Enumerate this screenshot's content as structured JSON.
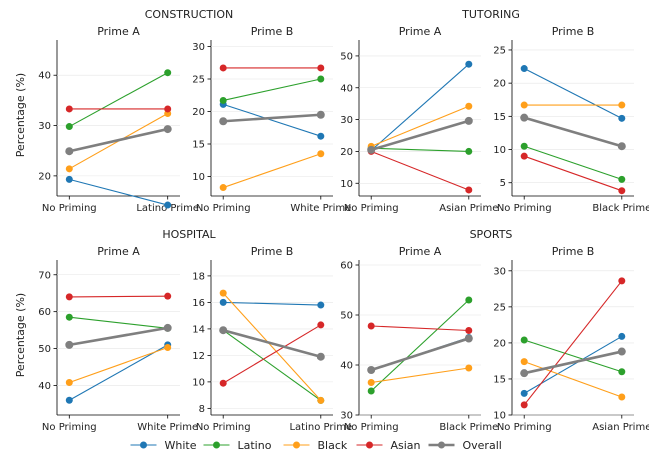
{
  "layout": {
    "ylabel": "Percentage (%)",
    "groups": [
      "CONSTRUCTION",
      "TUTORING",
      "HOSPITAL",
      "SPORTS"
    ]
  },
  "legend": {
    "position": "bottom-center",
    "entries": [
      {
        "name": "White",
        "color": "#1f77b4"
      },
      {
        "name": "Latino",
        "color": "#2ca02c"
      },
      {
        "name": "Black",
        "color": "#ff9f1a"
      },
      {
        "name": "Asian",
        "color": "#d62728"
      },
      {
        "name": "Overall",
        "color": "#7f7f7f"
      }
    ]
  },
  "chart_data": [
    {
      "type": "line",
      "group": "CONSTRUCTION",
      "title": "Prime A",
      "categories": [
        "No Priming",
        "Latino Prime"
      ],
      "ylim": [
        16,
        47
      ],
      "yticks": [
        20,
        30,
        40
      ],
      "series": [
        {
          "name": "White",
          "values": [
            19.3,
            14.2
          ]
        },
        {
          "name": "Latino",
          "values": [
            29.8,
            40.5
          ]
        },
        {
          "name": "Black",
          "values": [
            21.4,
            32.4
          ]
        },
        {
          "name": "Asian",
          "values": [
            33.3,
            33.3
          ]
        },
        {
          "name": "Overall",
          "values": [
            24.9,
            29.3
          ]
        }
      ]
    },
    {
      "type": "line",
      "group": "CONSTRUCTION",
      "title": "Prime B",
      "categories": [
        "No Priming",
        "White Prime"
      ],
      "ylim": [
        7,
        31
      ],
      "yticks": [
        10,
        15,
        20,
        25,
        30
      ],
      "series": [
        {
          "name": "White",
          "values": [
            21.1,
            16.2
          ]
        },
        {
          "name": "Latino",
          "values": [
            21.7,
            25.0
          ]
        },
        {
          "name": "Black",
          "values": [
            8.3,
            13.5
          ]
        },
        {
          "name": "Asian",
          "values": [
            26.7,
            26.7
          ]
        },
        {
          "name": "Overall",
          "values": [
            18.5,
            19.5
          ]
        }
      ]
    },
    {
      "type": "line",
      "group": "TUTORING",
      "title": "Prime A",
      "categories": [
        "No Priming",
        "Asian Prime"
      ],
      "ylim": [
        6,
        55
      ],
      "yticks": [
        10,
        20,
        30,
        40,
        50
      ],
      "series": [
        {
          "name": "White",
          "values": [
            20.3,
            47.4
          ]
        },
        {
          "name": "Latino",
          "values": [
            21.0,
            20.0
          ]
        },
        {
          "name": "Black",
          "values": [
            21.6,
            34.2
          ]
        },
        {
          "name": "Asian",
          "values": [
            20.0,
            7.9
          ]
        },
        {
          "name": "Overall",
          "values": [
            20.5,
            29.6
          ]
        }
      ]
    },
    {
      "type": "line",
      "group": "TUTORING",
      "title": "Prime B",
      "categories": [
        "No Priming",
        "Black Prime"
      ],
      "ylim": [
        3,
        26.5
      ],
      "yticks": [
        5,
        10,
        15,
        20,
        25
      ],
      "series": [
        {
          "name": "White",
          "values": [
            22.2,
            14.7
          ]
        },
        {
          "name": "Latino",
          "values": [
            10.5,
            5.5
          ]
        },
        {
          "name": "Black",
          "values": [
            16.7,
            16.7
          ]
        },
        {
          "name": "Asian",
          "values": [
            9.0,
            3.8
          ]
        },
        {
          "name": "Overall",
          "values": [
            14.8,
            10.5
          ]
        }
      ]
    },
    {
      "type": "line",
      "group": "HOSPITAL",
      "title": "Prime A",
      "categories": [
        "No Priming",
        "White Prime"
      ],
      "ylim": [
        32,
        74
      ],
      "yticks": [
        40,
        50,
        60,
        70
      ],
      "series": [
        {
          "name": "White",
          "values": [
            36.0,
            51.0
          ]
        },
        {
          "name": "Latino",
          "values": [
            58.5,
            55.5
          ]
        },
        {
          "name": "Black",
          "values": [
            40.8,
            50.3
          ]
        },
        {
          "name": "Asian",
          "values": [
            64.0,
            64.2
          ]
        },
        {
          "name": "Overall",
          "values": [
            51.0,
            55.6
          ]
        }
      ]
    },
    {
      "type": "line",
      "group": "HOSPITAL",
      "title": "Prime B",
      "categories": [
        "No Priming",
        "Latino Prime"
      ],
      "ylim": [
        7.5,
        19.2
      ],
      "yticks": [
        8,
        10,
        12,
        14,
        16,
        18
      ],
      "series": [
        {
          "name": "White",
          "values": [
            16.0,
            15.8
          ]
        },
        {
          "name": "Latino",
          "values": [
            13.9,
            8.6
          ]
        },
        {
          "name": "Black",
          "values": [
            16.7,
            8.6
          ]
        },
        {
          "name": "Asian",
          "values": [
            9.9,
            14.3
          ]
        },
        {
          "name": "Overall",
          "values": [
            13.9,
            11.9
          ]
        }
      ]
    },
    {
      "type": "line",
      "group": "SPORTS",
      "title": "Prime A",
      "categories": [
        "No Priming",
        "Black Prime"
      ],
      "ylim": [
        30,
        61
      ],
      "yticks": [
        30,
        40,
        50,
        60
      ],
      "series": [
        {
          "name": "White",
          "values": [
            39.0,
            45.5
          ]
        },
        {
          "name": "Latino",
          "values": [
            34.8,
            53.0
          ]
        },
        {
          "name": "Black",
          "values": [
            36.5,
            39.4
          ]
        },
        {
          "name": "Asian",
          "values": [
            47.8,
            46.9
          ]
        },
        {
          "name": "Overall",
          "values": [
            39.0,
            45.3
          ]
        }
      ]
    },
    {
      "type": "line",
      "group": "SPORTS",
      "title": "Prime B",
      "categories": [
        "No Priming",
        "Asian Prime"
      ],
      "ylim": [
        10,
        31.5
      ],
      "yticks": [
        10,
        15,
        20,
        25,
        30
      ],
      "series": [
        {
          "name": "White",
          "values": [
            13.0,
            20.9
          ]
        },
        {
          "name": "Latino",
          "values": [
            20.4,
            16.0
          ]
        },
        {
          "name": "Black",
          "values": [
            17.4,
            12.5
          ]
        },
        {
          "name": "Asian",
          "values": [
            11.4,
            28.6
          ]
        },
        {
          "name": "Overall",
          "values": [
            15.8,
            18.8
          ]
        }
      ]
    }
  ]
}
